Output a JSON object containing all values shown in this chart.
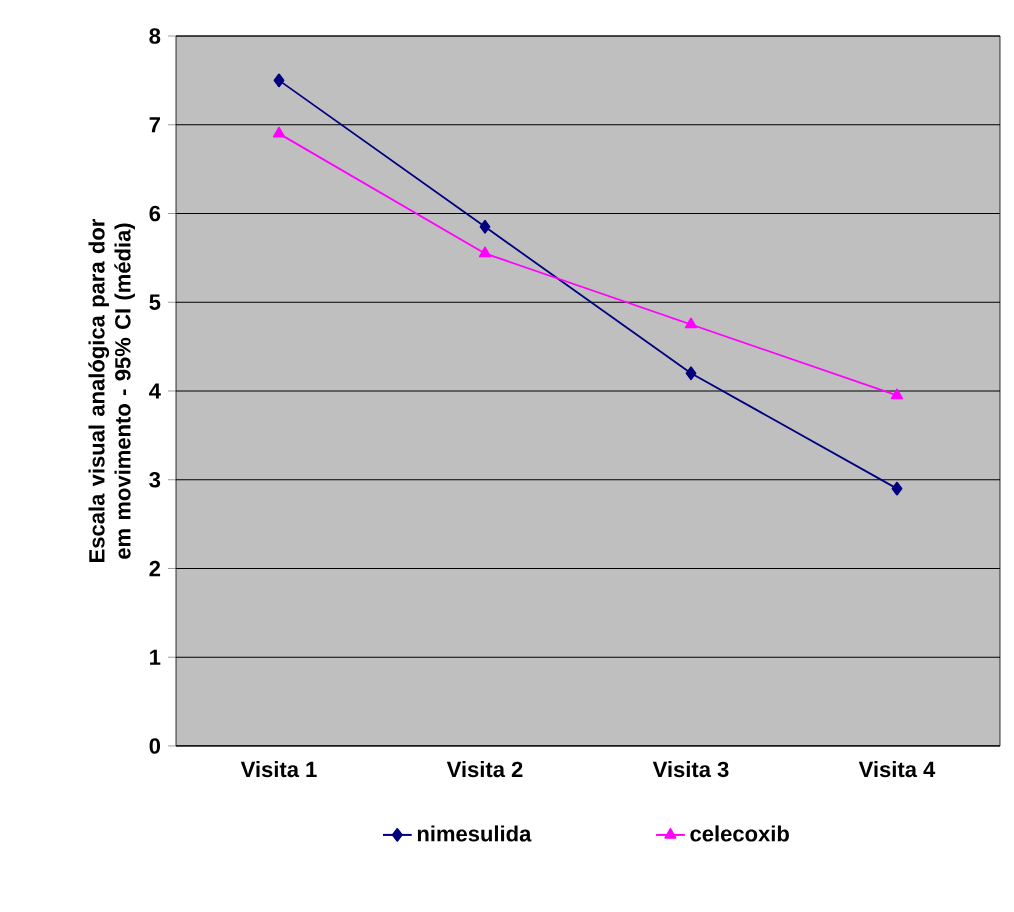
{
  "chart_data": {
    "type": "line",
    "ylabel": "Escala visual analógica para dor em movimento - 95% CI (média)",
    "categories": [
      "Visita 1",
      "Visita 2",
      "Visita 3",
      "Visita 4"
    ],
    "series": [
      {
        "name": "nimesulida",
        "color": "#000080",
        "marker": "diamond",
        "values": [
          7.5,
          5.85,
          4.2,
          2.9
        ]
      },
      {
        "name": "celecoxib",
        "color": "#ff00ff",
        "marker": "triangle",
        "values": [
          6.9,
          5.55,
          4.75,
          3.95
        ]
      }
    ],
    "ylim": [
      0,
      8
    ],
    "yticks": [
      0,
      1,
      2,
      3,
      4,
      5,
      6,
      7,
      8
    ],
    "grid": "y",
    "legend": "bottom"
  }
}
